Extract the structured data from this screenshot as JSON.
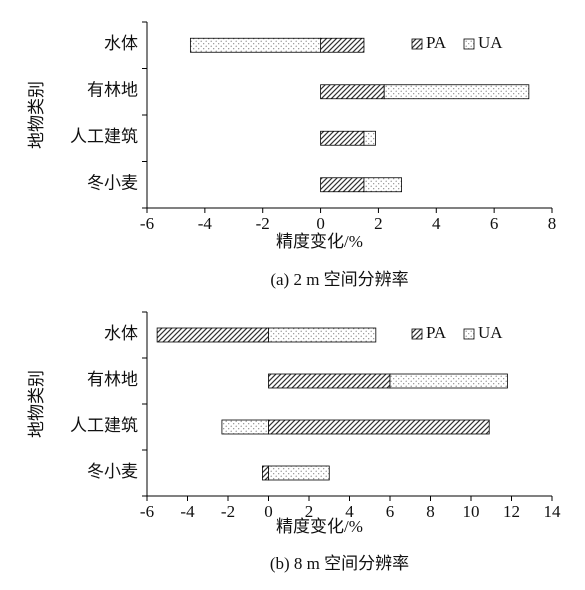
{
  "chart_data": [
    {
      "type": "bar",
      "orientation": "horizontal",
      "categories": [
        "水体",
        "有林地",
        "人工建筑",
        "冬小麦"
      ],
      "series": [
        {
          "name": "PA",
          "color": "#333333",
          "values": [
            1.5,
            2.2,
            1.5,
            1.5
          ]
        },
        {
          "name": "UA",
          "color": "#777777",
          "values": [
            -4.5,
            5.0,
            0.4,
            1.3
          ]
        }
      ],
      "xlim": [
        -6,
        8
      ],
      "xticks": [
        -6,
        -4,
        -2,
        0,
        2,
        4,
        6,
        8
      ],
      "xlabel": "精度变化/%",
      "ylabel": "地物类别",
      "caption": "(a) 2 m 空间分辨率"
    },
    {
      "type": "bar",
      "orientation": "horizontal",
      "categories": [
        "水体",
        "有林地",
        "人工建筑",
        "冬小麦"
      ],
      "series": [
        {
          "name": "PA",
          "color": "#333333",
          "values": [
            -5.5,
            6.0,
            10.9,
            -0.3
          ]
        },
        {
          "name": "UA",
          "color": "#777777",
          "values": [
            5.3,
            5.8,
            -2.3,
            3.0
          ]
        }
      ],
      "xlim": [
        -6,
        14
      ],
      "xticks": [
        -6,
        -4,
        -2,
        0,
        2,
        4,
        6,
        8,
        10,
        12,
        14
      ],
      "xlabel": "精度变化/%",
      "ylabel": "地物类别",
      "caption": "(b) 8 m 空间分辨率"
    }
  ]
}
